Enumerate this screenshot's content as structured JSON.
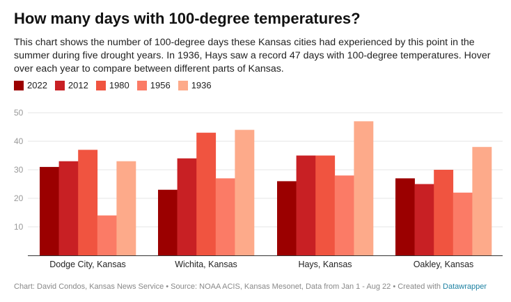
{
  "title": "How many days with 100-degree temperatures?",
  "description": "This chart shows the number of 100-degree days these Kansas cities had experienced by this point in the summer during five drought years. In 1936, Hays saw a record 47 days with 100-degree temperatures. Hover over each year to compare between different parts of Kansas.",
  "footer": {
    "text": "Chart: David Condos, Kansas News Service • Source: NOAA ACIS, Kansas Mesonet, Data from Jan 1 - Aug 22 • Created with ",
    "link": "Datawrapper"
  },
  "chart_data": {
    "type": "bar",
    "categories": [
      "Dodge City, Kansas",
      "Wichita, Kansas",
      "Hays, Kansas",
      "Oakley, Kansas"
    ],
    "series": [
      {
        "name": "2022",
        "color": "#9b0000",
        "values": [
          31,
          23,
          26,
          27
        ]
      },
      {
        "name": "2012",
        "color": "#c82024",
        "values": [
          33,
          34,
          35,
          25
        ]
      },
      {
        "name": "1980",
        "color": "#f05440",
        "values": [
          37,
          43,
          35,
          30
        ]
      },
      {
        "name": "1956",
        "color": "#fb7b66",
        "values": [
          14,
          27,
          28,
          22
        ]
      },
      {
        "name": "1936",
        "color": "#fdaa8a",
        "values": [
          33,
          44,
          47,
          38
        ]
      }
    ],
    "yticks": [
      10,
      20,
      30,
      40,
      50
    ],
    "ylim": [
      0,
      50
    ],
    "grid": true,
    "legend": "top-left",
    "xlabel": "",
    "ylabel": ""
  }
}
